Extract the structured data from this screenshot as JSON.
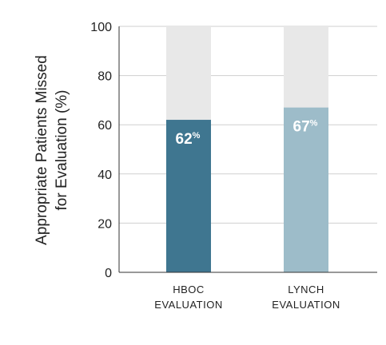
{
  "chart_data": {
    "type": "bar",
    "categories": [
      [
        "HBOC",
        "EVALUATION"
      ],
      [
        "LYNCH",
        "EVALUATION"
      ]
    ],
    "values": [
      62,
      67
    ],
    "data_labels": [
      {
        "number": "62",
        "unit": "%"
      },
      {
        "number": "67",
        "unit": "%"
      }
    ],
    "ylabel": [
      "Appropriate Patients Missed",
      "for Evaluation (%)"
    ],
    "ylim": [
      0,
      100
    ],
    "yticks": [
      0,
      20,
      40,
      60,
      80,
      100
    ],
    "grid": true,
    "colors": {
      "bars": [
        "#3f7690",
        "#9dbcc9"
      ],
      "background_bar": "#e8e8e8",
      "grid": "#cfcfcf",
      "axis": "#333333"
    }
  }
}
